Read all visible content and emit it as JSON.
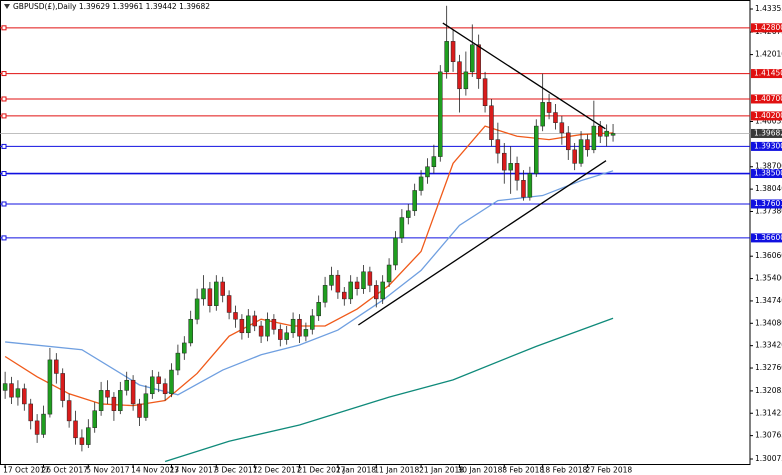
{
  "chart_data": {
    "type": "candlestick",
    "title": "GBPUSD(£),Daily  1.39629 1.39961 1.39442 1.39682",
    "open": [
      1.321,
      1.323,
      1.319,
      1.3215,
      1.317,
      1.312,
      1.308,
      1.314,
      1.33,
      1.326,
      1.318,
      1.312,
      1.307,
      1.305,
      1.31,
      1.315,
      1.321,
      1.319,
      1.315,
      1.321,
      1.324,
      1.317,
      1.313,
      1.32,
      1.325,
      1.323,
      1.32,
      1.327,
      1.332,
      1.335,
      1.342,
      1.348,
      1.351,
      1.346,
      1.353,
      1.349,
      1.344,
      1.342,
      1.338,
      1.343,
      1.34,
      1.337,
      1.342,
      1.339,
      1.336,
      1.338,
      1.342,
      1.337,
      1.339,
      1.343,
      1.347,
      1.352,
      1.355,
      1.35,
      1.348,
      1.353,
      1.351,
      1.356,
      1.352,
      1.348,
      1.353,
      1.358,
      1.366,
      1.372,
      1.374,
      1.38,
      1.384,
      1.387,
      1.39,
      1.415,
      1.424,
      1.418,
      1.41,
      1.415,
      1.423,
      1.413,
      1.405,
      1.395,
      1.391,
      1.386,
      1.388,
      1.383,
      1.378,
      1.385,
      1.399,
      1.406,
      1.403,
      1.4,
      1.397,
      1.392,
      1.388,
      1.395,
      1.392,
      1.399,
      1.396,
      1.39629
    ],
    "high": [
      1.3265,
      1.325,
      1.324,
      1.323,
      1.3185,
      1.314,
      1.3165,
      1.3335,
      1.332,
      1.3275,
      1.32,
      1.315,
      1.3095,
      1.3125,
      1.3175,
      1.3235,
      1.324,
      1.3205,
      1.3235,
      1.3265,
      1.3255,
      1.3185,
      1.3225,
      1.327,
      1.3265,
      1.3245,
      1.329,
      1.3345,
      1.337,
      1.3445,
      1.351,
      1.355,
      1.353,
      1.355,
      1.3545,
      1.3505,
      1.346,
      1.3435,
      1.345,
      1.3445,
      1.3415,
      1.344,
      1.3435,
      1.3405,
      1.34,
      1.344,
      1.3435,
      1.341,
      1.345,
      1.349,
      1.3545,
      1.3575,
      1.3565,
      1.3515,
      1.355,
      1.3545,
      1.358,
      1.3575,
      1.3535,
      1.355,
      1.36,
      1.368,
      1.3745,
      1.376,
      1.382,
      1.386,
      1.3895,
      1.3935,
      1.417,
      1.4345,
      1.4275,
      1.42,
      1.421,
      1.429,
      1.426,
      1.415,
      1.407,
      1.4,
      1.394,
      1.393,
      1.39,
      1.386,
      1.387,
      1.401,
      1.4145,
      1.4085,
      1.4055,
      1.402,
      1.399,
      1.394,
      1.3975,
      1.3965,
      1.4065,
      1.4005,
      1.3995,
      1.39961
    ],
    "low": [
      1.3185,
      1.317,
      1.3165,
      1.315,
      1.3095,
      1.3055,
      1.307,
      1.313,
      1.323,
      1.316,
      1.31,
      1.305,
      1.303,
      1.304,
      1.3085,
      1.3135,
      1.317,
      1.312,
      1.314,
      1.3195,
      1.315,
      1.3105,
      1.312,
      1.3185,
      1.3205,
      1.318,
      1.319,
      1.3255,
      1.33,
      1.334,
      1.3405,
      1.346,
      1.344,
      1.3445,
      1.347,
      1.342,
      1.3395,
      1.336,
      1.3365,
      1.3385,
      1.335,
      1.3355,
      1.3375,
      1.334,
      1.3345,
      1.3365,
      1.335,
      1.3355,
      1.3375,
      1.3415,
      1.3455,
      1.3505,
      1.348,
      1.346,
      1.3465,
      1.349,
      1.3495,
      1.35,
      1.3455,
      1.3465,
      1.3515,
      1.3565,
      1.3645,
      1.37,
      1.3725,
      1.3785,
      1.382,
      1.385,
      1.3885,
      1.413,
      1.415,
      1.403,
      1.408,
      1.4135,
      1.41,
      1.403,
      1.393,
      1.388,
      1.382,
      1.379,
      1.38,
      1.377,
      1.377,
      1.384,
      1.3975,
      1.401,
      1.398,
      1.3935,
      1.389,
      1.386,
      1.387,
      1.39,
      1.391,
      1.394,
      1.393,
      1.39442
    ],
    "close": [
      1.323,
      1.319,
      1.3215,
      1.317,
      1.312,
      1.308,
      1.314,
      1.33,
      1.326,
      1.318,
      1.312,
      1.307,
      1.305,
      1.31,
      1.315,
      1.321,
      1.319,
      1.315,
      1.321,
      1.324,
      1.317,
      1.313,
      1.32,
      1.325,
      1.323,
      1.32,
      1.327,
      1.332,
      1.335,
      1.342,
      1.348,
      1.351,
      1.346,
      1.353,
      1.349,
      1.344,
      1.342,
      1.338,
      1.343,
      1.34,
      1.337,
      1.342,
      1.339,
      1.336,
      1.338,
      1.342,
      1.337,
      1.339,
      1.343,
      1.347,
      1.352,
      1.355,
      1.35,
      1.348,
      1.353,
      1.351,
      1.356,
      1.352,
      1.348,
      1.353,
      1.358,
      1.366,
      1.372,
      1.374,
      1.38,
      1.384,
      1.387,
      1.39,
      1.415,
      1.424,
      1.418,
      1.41,
      1.415,
      1.423,
      1.413,
      1.405,
      1.395,
      1.391,
      1.386,
      1.388,
      1.383,
      1.378,
      1.385,
      1.399,
      1.406,
      1.403,
      1.4,
      1.397,
      1.392,
      1.388,
      1.395,
      1.392,
      1.399,
      1.396,
      1.3975,
      1.39682
    ],
    "up_color": "#1f9e1f",
    "down_color": "#d91c1c",
    "xlim": [
      -0.8,
      116.4
    ],
    "ylim": [
      1.29898,
      1.43621
    ],
    "xticks": [
      {
        "value": 0,
        "label": "17 Oct 2017"
      },
      {
        "value": 6,
        "label": "26 Oct 2017"
      },
      {
        "value": 13,
        "label": "5 Nov 2017"
      },
      {
        "value": 20,
        "label": "14 Nov 2017"
      },
      {
        "value": 26,
        "label": "23 Nov 2017"
      },
      {
        "value": 33,
        "label": "3 Dec 2017"
      },
      {
        "value": 39,
        "label": "12 Dec 2017"
      },
      {
        "value": 46,
        "label": "21 Dec 2017"
      },
      {
        "value": 52,
        "label": "2 Jan 2018"
      },
      {
        "value": 58,
        "label": "11 Jan 2018"
      },
      {
        "value": 65,
        "label": "21 Jan 2018"
      },
      {
        "value": 71,
        "label": "30 Jan 2018"
      },
      {
        "value": 78,
        "label": "8 Feb 2018"
      },
      {
        "value": 84,
        "label": "18 Feb 2018"
      },
      {
        "value": 91,
        "label": "27 Feb 2018"
      }
    ],
    "yticks": [
      1.43355,
      1.42675,
      {
        "value": 1.4201,
        "label": "1.42010"
      },
      1.40035,
      {
        "value": 1.387,
        "label": "1.38700"
      },
      {
        "value": 1.3804,
        "label": "1.38040"
      },
      {
        "value": 1.3738,
        "label": "1.37380"
      },
      {
        "value": 1.3606,
        "label": "1.36060"
      },
      {
        "value": 1.354,
        "label": "1.35400"
      },
      {
        "value": 1.3474,
        "label": "1.34740"
      },
      {
        "value": 1.3408,
        "label": "1.34080"
      },
      {
        "value": 1.3342,
        "label": "1.33420"
      },
      {
        "value": 1.3276,
        "label": "1.32760"
      },
      1.32085,
      1.31425,
      1.30765,
      1.30075
    ],
    "moving_averages": [
      {
        "color": "#f05a1a",
        "x": [
          0,
          5,
          10,
          15,
          20,
          25,
          30,
          35,
          40,
          45,
          50,
          55,
          60,
          65,
          70,
          75,
          80,
          85,
          90,
          95
        ],
        "values": [
          1.331,
          1.325,
          1.32,
          1.317,
          1.3165,
          1.318,
          1.326,
          1.337,
          1.342,
          1.34,
          1.34,
          1.345,
          1.352,
          1.362,
          1.388,
          1.399,
          1.396,
          1.395,
          1.3965,
          1.397
        ]
      },
      {
        "color": "#6f9fe0",
        "x": [
          0,
          12,
          21,
          27,
          34,
          40,
          46,
          52,
          59,
          65,
          71,
          77,
          84,
          90,
          95
        ],
        "values": [
          1.3353,
          1.333,
          1.3226,
          1.3197,
          1.327,
          1.3315,
          1.3344,
          1.3388,
          1.3476,
          1.3564,
          1.3697,
          1.377,
          1.3785,
          1.3829,
          1.3858
        ]
      },
      {
        "color": "#0f8a7a",
        "x": [
          25,
          35,
          46,
          60,
          70,
          83,
          95
        ],
        "values": [
          1.3,
          1.306,
          1.3108,
          1.319,
          1.3241,
          1.334,
          1.3423
        ]
      }
    ],
    "trendlines": [
      {
        "color": "#000000",
        "x": [
          68.4,
          93.8
        ],
        "values": [
          1.4294,
          1.3982
        ]
      },
      {
        "color": "#000000",
        "x": [
          55.2,
          93.9
        ],
        "values": [
          1.3403,
          1.3888
        ]
      }
    ],
    "levels": [
      {
        "value": 1.428,
        "label": "1.42800",
        "color": "#e01010"
      },
      {
        "value": 1.4145,
        "label": "1.41450",
        "color": "#e01010"
      },
      {
        "value": 1.407,
        "label": "1.40700",
        "color": "#e01010"
      },
      {
        "value": 1.402,
        "label": "1.40200",
        "color": "#e01010"
      },
      {
        "value": 1.393,
        "label": "1.39300",
        "color": "#1010e0"
      },
      {
        "value": 1.385,
        "label": "1.38500",
        "color": "#1010e0"
      },
      {
        "value": 1.37601,
        "label": "1.37601",
        "color": "#1010e0"
      },
      {
        "value": 1.366,
        "label": "1.36600",
        "color": "#1010e0"
      }
    ],
    "last_price": {
      "value": 1.39682,
      "label": "1.39682"
    }
  }
}
